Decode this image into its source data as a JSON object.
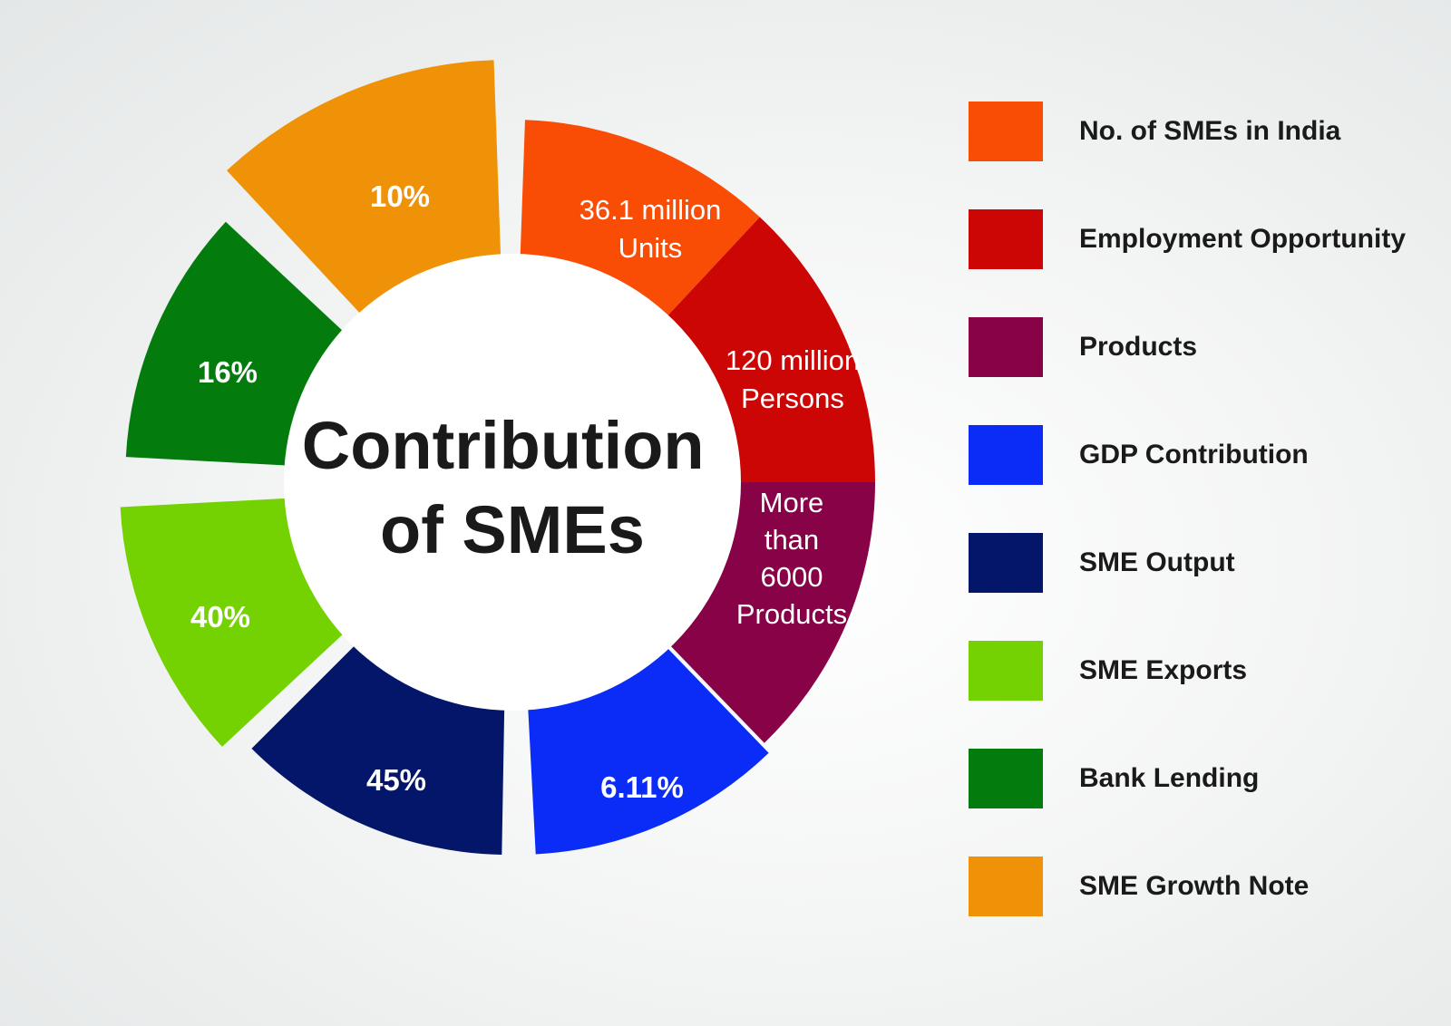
{
  "chart_data": {
    "type": "pie",
    "title": "Contribution of SMEs",
    "title_lines": [
      "Contribution",
      "of SMEs"
    ],
    "segments": [
      {
        "label": "No. of SMEs in India",
        "value_text": [
          "36.1 million",
          "Units"
        ],
        "color": "#f94d05"
      },
      {
        "label": "Employment Opportunity",
        "value_text": [
          "120 million",
          "Persons"
        ],
        "color": "#cc0505"
      },
      {
        "label": "Products",
        "value_text": [
          "More",
          "than",
          "6000",
          "Products"
        ],
        "color": "#870246"
      },
      {
        "label": "GDP Contribution",
        "value_text": [
          "6.11%"
        ],
        "color": "#0a2cf6"
      },
      {
        "label": "SME Output",
        "value_text": [
          "45%"
        ],
        "color": "#03166a"
      },
      {
        "label": "SME Exports",
        "value_text": [
          "40%"
        ],
        "color": "#74d202"
      },
      {
        "label": "Bank Lending",
        "value_text": [
          "16%"
        ],
        "color": "#047c0d"
      },
      {
        "label": "SME Growth Note",
        "value_text": [
          "10%"
        ],
        "color": "#f09207"
      }
    ],
    "legend_position": "right"
  }
}
